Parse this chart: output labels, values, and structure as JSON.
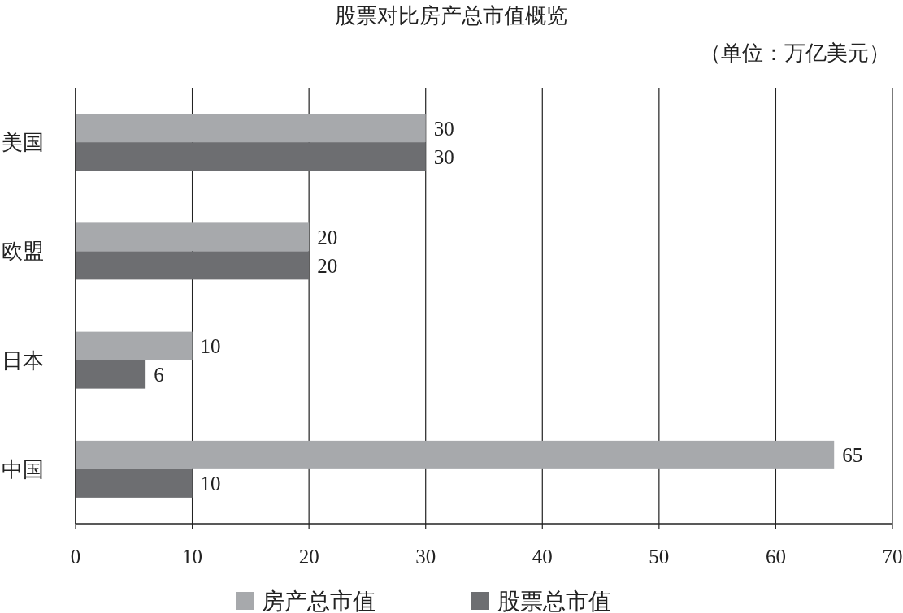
{
  "chart_data": {
    "type": "bar",
    "orientation": "horizontal",
    "title": "股票对比房产总市值概览",
    "annotations": [
      "（单位：万亿美元）"
    ],
    "categories": [
      "美国",
      "欧盟",
      "日本",
      "中国"
    ],
    "series": [
      {
        "name": "房产总市值",
        "color": "#a7a9ac",
        "values": [
          30,
          20,
          10,
          65
        ]
      },
      {
        "name": "股票总市值",
        "color": "#6d6e71",
        "values": [
          30,
          20,
          6,
          10
        ]
      }
    ],
    "xlim": [
      0,
      70
    ],
    "xticks": [
      0,
      10,
      20,
      30,
      40,
      50,
      60,
      70
    ],
    "grid": "x",
    "legend": "bottom",
    "data_labels": true
  }
}
